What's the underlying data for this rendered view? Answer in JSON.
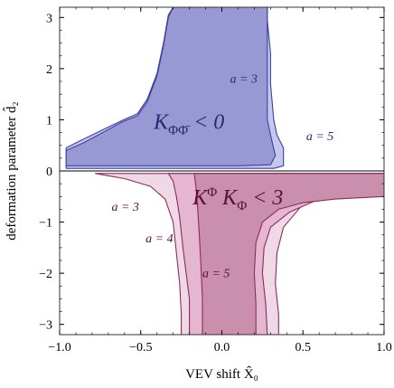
{
  "chart_data": {
    "type": "area",
    "xlabel": "VEV shift X̂₀",
    "ylabel": "deformation parameter d̂₂",
    "xlim": [
      -1.0,
      1.0
    ],
    "ylim": [
      -3.2,
      3.2
    ],
    "x_ticks": [
      {
        "value": -1.0,
        "label": "−1.0"
      },
      {
        "value": -0.5,
        "label": "−0.5"
      },
      {
        "value": 0.0,
        "label": "0.0"
      },
      {
        "value": 0.5,
        "label": "0.5"
      },
      {
        "value": 1.0,
        "label": "1.0"
      }
    ],
    "y_ticks": [
      {
        "value": -3,
        "label": "−3"
      },
      {
        "value": -2,
        "label": "−2"
      },
      {
        "value": -1,
        "label": "−1"
      },
      {
        "value": 0,
        "label": "0"
      },
      {
        "value": 1,
        "label": "1"
      },
      {
        "value": 2,
        "label": "2"
      },
      {
        "value": 3,
        "label": "3"
      }
    ],
    "grid": false,
    "regions": [
      {
        "name": "a = 5 (K_ΦΦ̄ < 0)",
        "color": "#c5c8ee",
        "stroke": "#3c3f9e",
        "points": [
          [
            -0.96,
            0.45
          ],
          [
            -0.88,
            0.58
          ],
          [
            -0.75,
            0.78
          ],
          [
            -0.62,
            0.98
          ],
          [
            -0.52,
            1.12
          ],
          [
            -0.46,
            1.4
          ],
          [
            -0.4,
            1.9
          ],
          [
            -0.36,
            2.5
          ],
          [
            -0.33,
            3.05
          ],
          [
            -0.3,
            3.2
          ],
          [
            0.28,
            3.2
          ],
          [
            0.28,
            2.95
          ],
          [
            0.3,
            2.3
          ],
          [
            0.3,
            1.7
          ],
          [
            0.32,
            1.0
          ],
          [
            0.34,
            0.7
          ],
          [
            0.38,
            0.45
          ],
          [
            0.38,
            0.1
          ],
          [
            0.32,
            0.05
          ],
          [
            0.1,
            0.05
          ],
          [
            -0.3,
            0.05
          ],
          [
            -0.96,
            0.05
          ]
        ]
      },
      {
        "name": "a = 3 (K_ΦΦ̄ < 0)",
        "color": "#9899d4",
        "stroke": "#3c3f9e",
        "points": [
          [
            -0.96,
            0.4
          ],
          [
            -0.86,
            0.54
          ],
          [
            -0.74,
            0.74
          ],
          [
            -0.62,
            0.95
          ],
          [
            -0.52,
            1.08
          ],
          [
            -0.46,
            1.35
          ],
          [
            -0.4,
            1.85
          ],
          [
            -0.36,
            2.45
          ],
          [
            -0.33,
            3.0
          ],
          [
            -0.3,
            3.2
          ],
          [
            0.28,
            3.2
          ],
          [
            0.28,
            2.9
          ],
          [
            0.28,
            2.2
          ],
          [
            0.28,
            1.6
          ],
          [
            0.28,
            1.0
          ],
          [
            0.3,
            0.7
          ],
          [
            0.33,
            0.3
          ],
          [
            0.3,
            0.12
          ],
          [
            0.1,
            0.1
          ],
          [
            -0.3,
            0.1
          ],
          [
            -0.96,
            0.1
          ]
        ]
      },
      {
        "name": "a = 3 (K^Φ K_Φ < 3)",
        "color": "#f0d9e7",
        "stroke": "#8e2a5c",
        "points": [
          [
            -0.78,
            -0.05
          ],
          [
            -0.6,
            -0.15
          ],
          [
            -0.44,
            -0.3
          ],
          [
            -0.35,
            -0.55
          ],
          [
            -0.3,
            -1.0
          ],
          [
            -0.28,
            -1.6
          ],
          [
            -0.26,
            -2.2
          ],
          [
            -0.25,
            -2.8
          ],
          [
            -0.25,
            -3.2
          ],
          [
            0.35,
            -3.2
          ],
          [
            0.35,
            -2.8
          ],
          [
            0.33,
            -2.2
          ],
          [
            0.34,
            -1.6
          ],
          [
            0.38,
            -1.1
          ],
          [
            0.5,
            -0.65
          ],
          [
            0.7,
            -0.35
          ],
          [
            1.0,
            -0.2
          ],
          [
            1.0,
            -0.05
          ]
        ]
      },
      {
        "name": "a = 4 (K^Φ K_Φ < 3)",
        "color": "#e4b6cf",
        "stroke": "#8e2a5c",
        "points": [
          [
            -0.33,
            -0.05
          ],
          [
            -0.3,
            -0.2
          ],
          [
            -0.28,
            -0.5
          ],
          [
            -0.26,
            -0.9
          ],
          [
            -0.24,
            -1.5
          ],
          [
            -0.22,
            -2.0
          ],
          [
            -0.2,
            -2.5
          ],
          [
            -0.2,
            -3.2
          ],
          [
            0.28,
            -3.2
          ],
          [
            0.27,
            -2.6
          ],
          [
            0.25,
            -2.0
          ],
          [
            0.26,
            -1.5
          ],
          [
            0.3,
            -1.1
          ],
          [
            0.42,
            -0.8
          ],
          [
            0.6,
            -0.55
          ],
          [
            0.8,
            -0.42
          ],
          [
            1.0,
            -0.38
          ],
          [
            1.0,
            -0.05
          ]
        ]
      },
      {
        "name": "a = 5 (K^Φ K_Φ < 3)",
        "color": "#c98fad",
        "stroke": "#8e2a5c",
        "points": [
          [
            -0.17,
            -0.05
          ],
          [
            -0.16,
            -0.3
          ],
          [
            -0.15,
            -0.7
          ],
          [
            -0.14,
            -1.2
          ],
          [
            -0.13,
            -1.8
          ],
          [
            -0.12,
            -2.5
          ],
          [
            -0.12,
            -3.2
          ],
          [
            0.21,
            -3.2
          ],
          [
            0.21,
            -2.6
          ],
          [
            0.2,
            -2.0
          ],
          [
            0.21,
            -1.4
          ],
          [
            0.25,
            -1.0
          ],
          [
            0.35,
            -0.75
          ],
          [
            0.5,
            -0.62
          ],
          [
            0.7,
            -0.55
          ],
          [
            1.0,
            -0.5
          ],
          [
            1.0,
            -0.05
          ]
        ]
      }
    ],
    "annotations": [
      {
        "text": "K",
        "sub": "ΦΦ̄",
        "rest": " < 0",
        "x": -0.42,
        "y": 0.82,
        "color": "#27296f"
      },
      {
        "text": "K",
        "sup": "Φ",
        "mid": " K",
        "sub": "Φ",
        "rest": " < 3",
        "x": -0.18,
        "y": -0.65,
        "color": "#5a0f33"
      }
    ],
    "small_annotations": [
      {
        "label": "a = 3",
        "x": 0.05,
        "y": 1.72,
        "color": "#27296f"
      },
      {
        "label": "a = 5",
        "x": 0.52,
        "y": 0.6,
        "color": "#27296f"
      },
      {
        "label": "a = 3",
        "x": -0.68,
        "y": -0.78,
        "color": "#5a0f33"
      },
      {
        "label": "a = 4",
        "x": -0.47,
        "y": -1.4,
        "color": "#5a0f33"
      },
      {
        "label": "a = 5",
        "x": -0.12,
        "y": -2.08,
        "color": "#5a0f33"
      }
    ]
  }
}
